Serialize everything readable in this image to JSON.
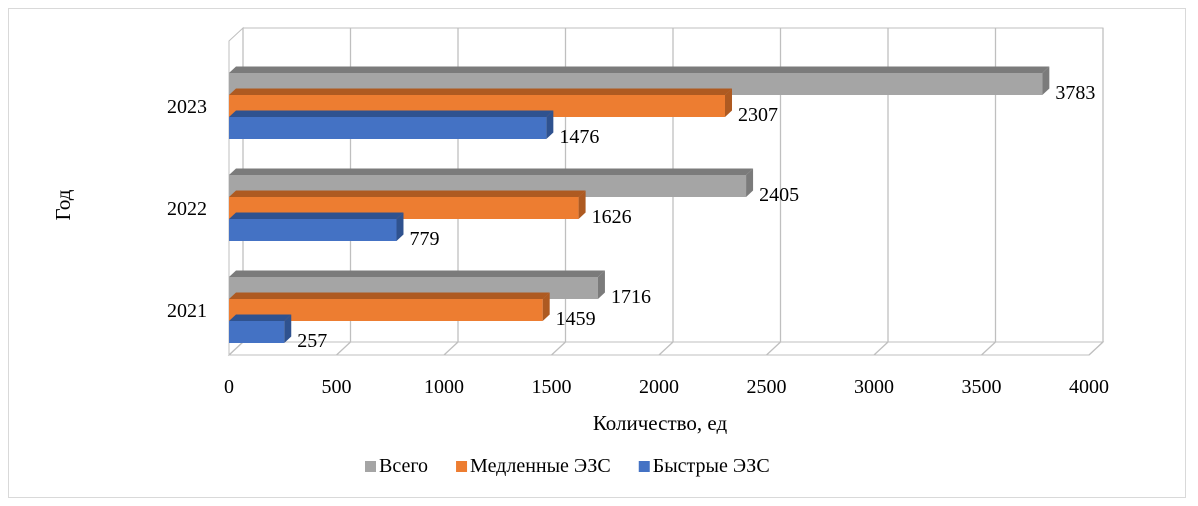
{
  "chart_data": {
    "type": "bar",
    "orientation": "horizontal",
    "categories": [
      "2021",
      "2022",
      "2023"
    ],
    "series": [
      {
        "name": "Быстрые ЭЗС",
        "values": [
          257,
          779,
          1476
        ],
        "color": "#4472c4",
        "side_color": "#2f528f"
      },
      {
        "name": "Медленные ЭЗС",
        "values": [
          1459,
          1626,
          2307
        ],
        "color": "#ed7d31",
        "side_color": "#ae5a21"
      },
      {
        "name": "Всего",
        "values": [
          1716,
          2405,
          3783
        ],
        "color": "#a5a5a5",
        "side_color": "#7b7b7b"
      }
    ],
    "xlabel": "Количество, ед",
    "ylabel": "Год",
    "xlim": [
      0,
      4000
    ],
    "x_ticks": [
      0,
      500,
      1000,
      1500,
      2000,
      2500,
      3000,
      3500,
      4000
    ],
    "legend_order": [
      "Всего",
      "Медленные ЭЗС",
      "Быстрые ЭЗС"
    ],
    "legend_position": "bottom",
    "grid": true,
    "style": "3d"
  }
}
